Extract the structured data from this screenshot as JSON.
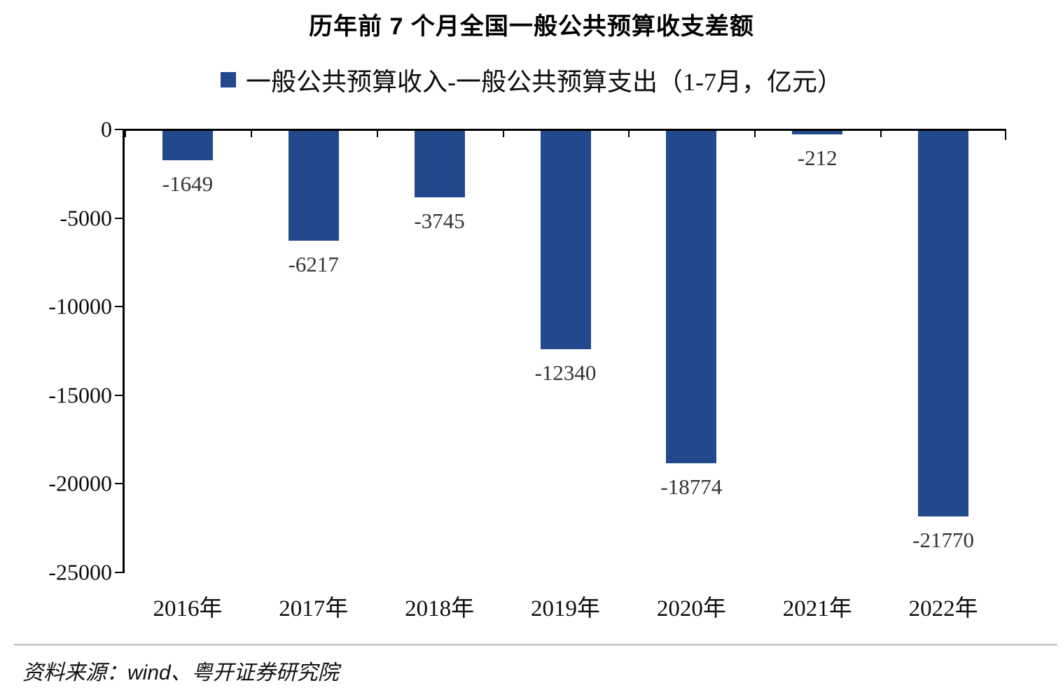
{
  "title": "历年前 7 个月全国一般公共预算收支差额",
  "legend": {
    "marker_color": "#21498C",
    "label": "一般公共预算收入-一般公共预算支出（1-7月，亿元）"
  },
  "chart_data": {
    "type": "bar",
    "title": "历年前 7 个月全国一般公共预算收支差额",
    "categories": [
      "2016年",
      "2017年",
      "2018年",
      "2019年",
      "2020年",
      "2021年",
      "2022年"
    ],
    "series": [
      {
        "name": "一般公共预算收入-一般公共预算支出（1-7月，亿元）",
        "values": [
          -1649,
          -6217,
          -3745,
          -12340,
          -18774,
          -212,
          -21770
        ]
      }
    ],
    "data_labels": [
      "-1649",
      "-6217",
      "-3745",
      "-12340",
      "-18774",
      "-212",
      "-21770"
    ],
    "unit": "亿元",
    "ylim": [
      -25000,
      0
    ],
    "yticks": [
      0,
      -5000,
      -10000,
      -15000,
      -20000,
      -25000
    ],
    "grid": false,
    "legend_position": "top",
    "bar_color": "#21498C",
    "axis_color": "#000000",
    "label_color": "#333333"
  },
  "footer": {
    "source": "资料来源：wind、粤开证券研究院"
  }
}
